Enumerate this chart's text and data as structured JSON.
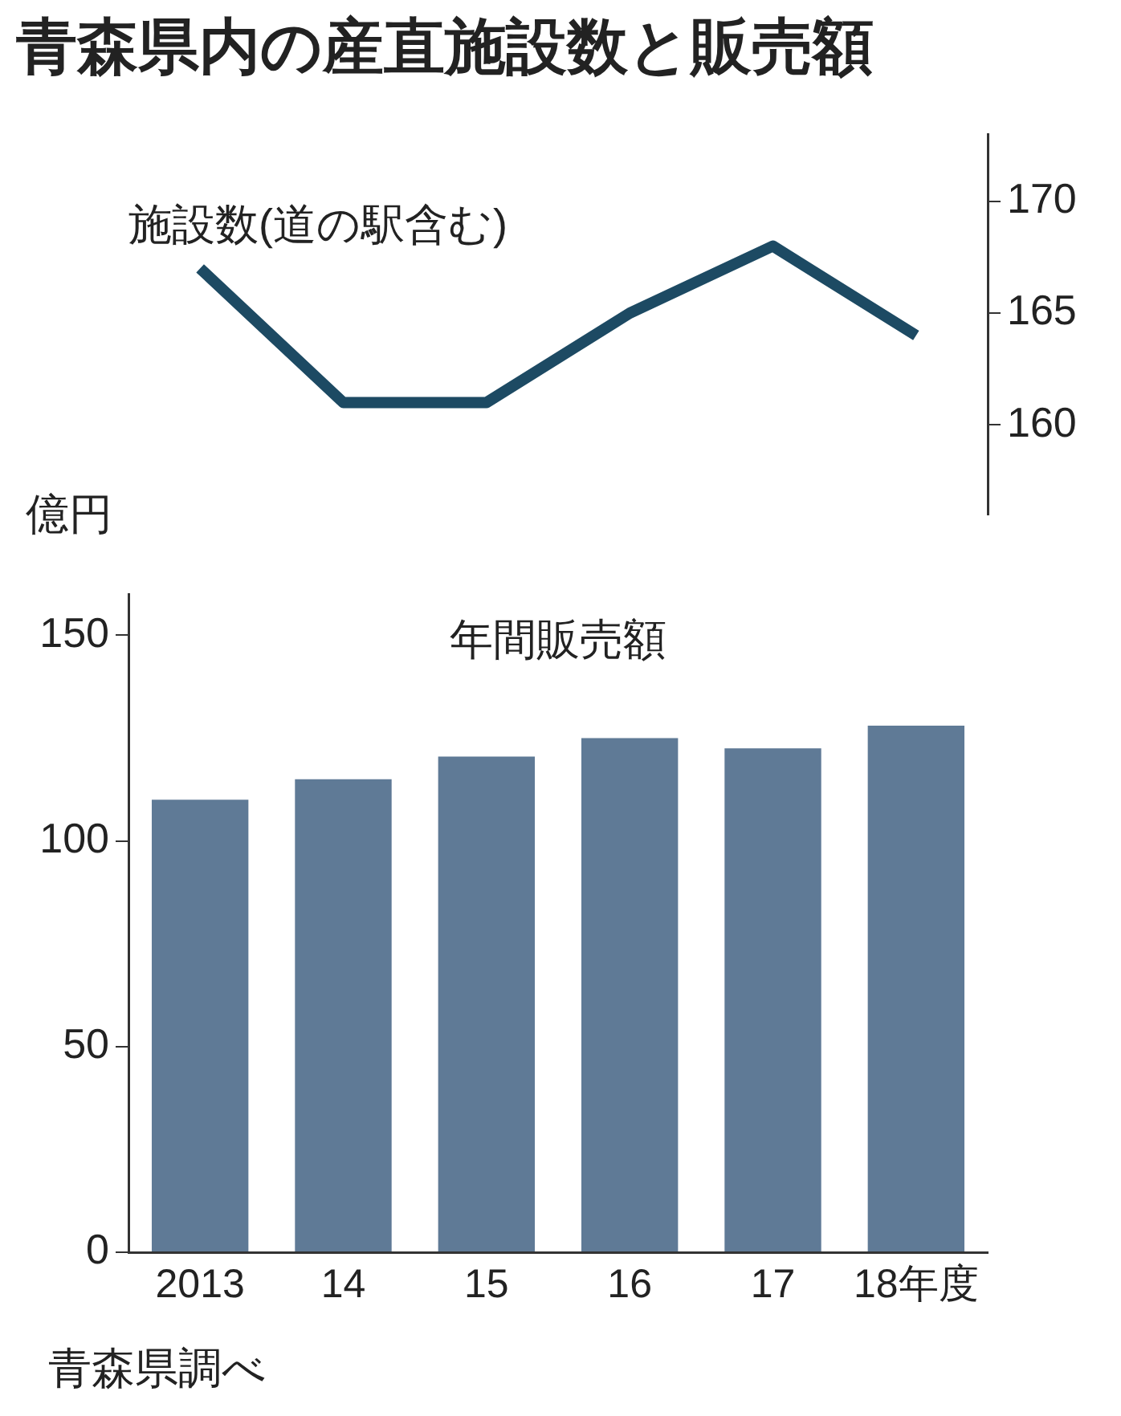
{
  "chart_data": [
    {
      "type": "line",
      "title": "青森県内の産直施設数と販売額",
      "categories": [
        null,
        null,
        null,
        null,
        null,
        null
      ],
      "series": [
        {
          "name": "施設数(道の駅含む)",
          "color": "#1d4a63",
          "values": [
            167,
            161,
            161,
            165,
            168,
            164
          ]
        }
      ],
      "ylim": [
        156,
        173
      ],
      "yticks": [
        160,
        165,
        170
      ],
      "tick_labels": "y",
      "grid": false,
      "legend": false,
      "marker": "none"
    },
    {
      "type": "bar",
      "title": "年間販売額",
      "ylabel": "億円",
      "categories": [
        "2013",
        "14",
        "15",
        "16",
        "17",
        "18年度"
      ],
      "values": [
        110,
        115,
        120.5,
        125,
        122.5,
        128
      ],
      "color": "#5f7a96",
      "ylim": [
        0,
        160
      ],
      "yticks": [
        0,
        50,
        100,
        150
      ],
      "grid": false,
      "legend": false,
      "annotations": [
        "青森県調べ"
      ]
    }
  ]
}
